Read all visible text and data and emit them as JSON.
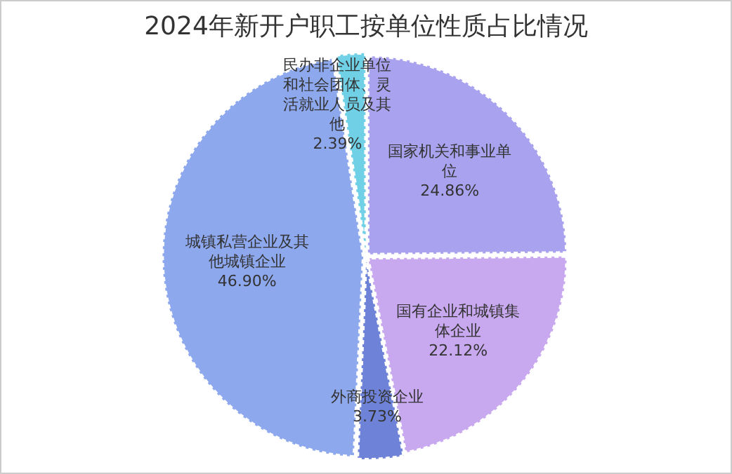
{
  "chart_data": {
    "type": "pie",
    "title": "2024年新开户职工按单位性质占比情况",
    "categories": [
      "国家机关和事业单位",
      "国有企业和城镇集体企业",
      "外商投资企业",
      "城镇私营企业及其他城镇企业",
      "民办非企业单位和社会团体、灵活就业人员及其他"
    ],
    "values": [
      24.86,
      22.12,
      3.73,
      46.9,
      2.39
    ],
    "colors": [
      "#a9a2ee",
      "#c8a8ee",
      "#6e83d8",
      "#8ea8ee",
      "#6fd0e6"
    ],
    "value_labels": [
      "24.86%",
      "22.12%",
      "3.73%",
      "46.90%",
      "2.39%"
    ],
    "legend": false
  }
}
